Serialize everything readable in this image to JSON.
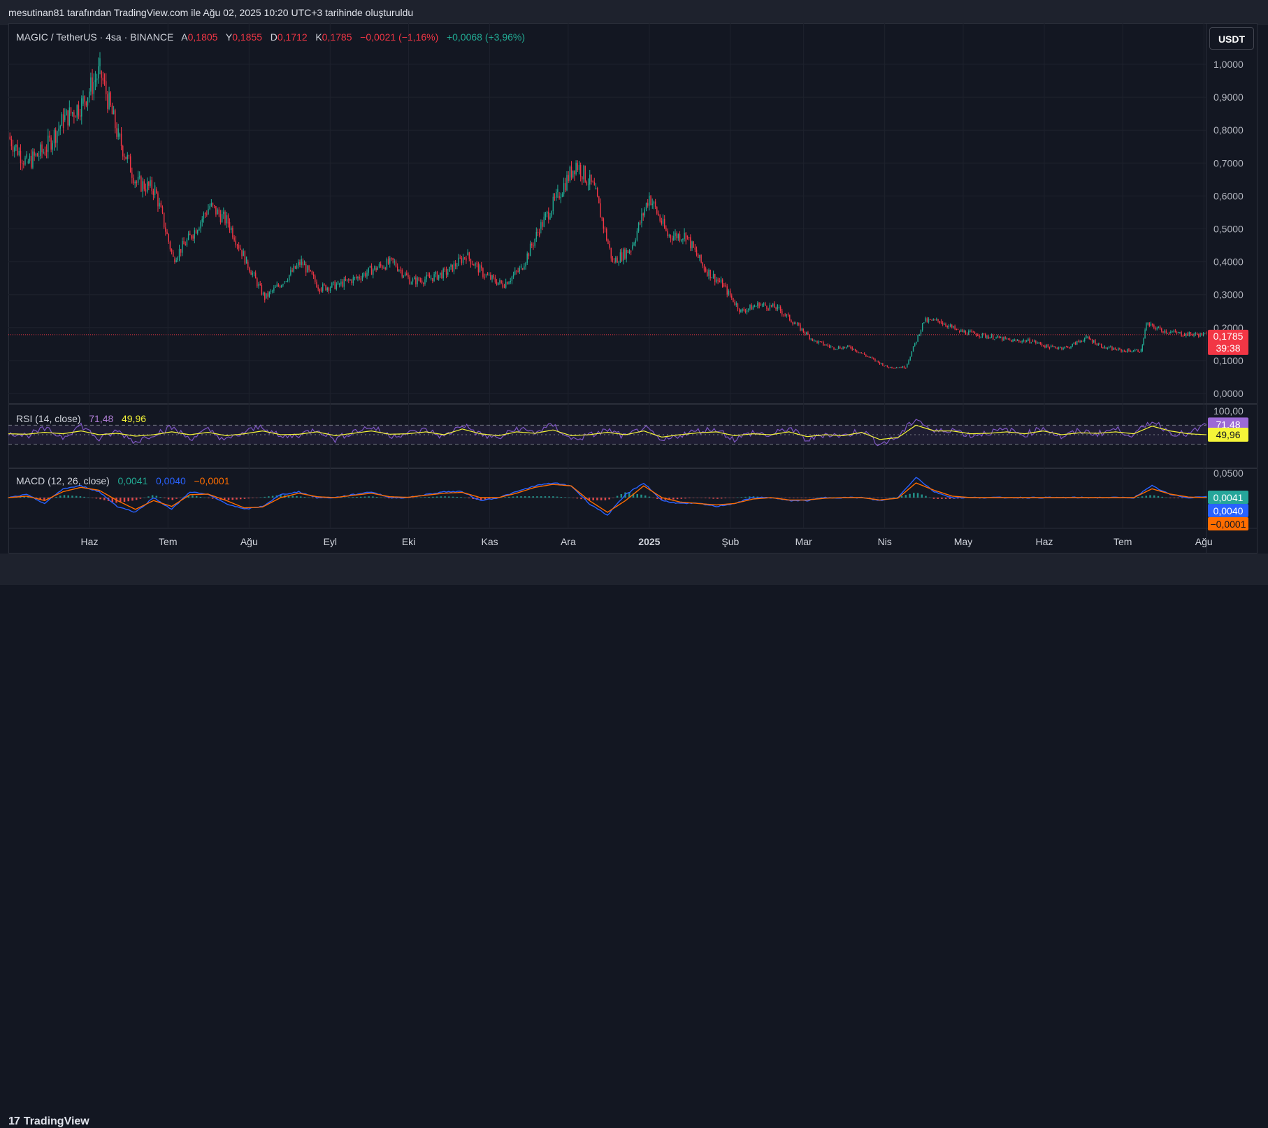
{
  "caption": "mesutinan81 tarafından TradingView.com ile Ağu 02, 2025 10:20 UTC+3 tarihinde oluşturuldu",
  "currency_button": "USDT",
  "footer_brand": "TradingView",
  "main_legend": {
    "symbol": "MAGIC / TetherUS · 4sa · BINANCE",
    "o_label": "A",
    "o_value": "0,1805",
    "h_label": "Y",
    "h_value": "0,1855",
    "l_label": "D",
    "l_value": "0,1712",
    "c_label": "K",
    "c_value": "0,1785",
    "change": "−0,0021 (−1,16%)",
    "change2": "+0,0068 (+3,96%)"
  },
  "rsi_legend": {
    "name": "RSI (14, close)",
    "rsi": "71,48",
    "ma": "49,96"
  },
  "macd_legend": {
    "name": "MACD (12, 26, close)",
    "hist": "0,0041",
    "macd": "0,0040",
    "signal": "−0,0001"
  },
  "price_badge": {
    "price": "0,1785",
    "countdown": "39:38"
  },
  "rsi_badges": {
    "rsi": "71,48",
    "ma": "49,96"
  },
  "macd_badges": {
    "hist": "0,0041",
    "macd": "0,0040",
    "signal": "−0,0001"
  },
  "colors": {
    "up": "#22ab94",
    "down": "#f23645",
    "rsi": "#7e57c2",
    "rsi_ma": "#f5f538",
    "macd": "#2962ff",
    "signal": "#ff6d00",
    "bg": "#131722",
    "grid": "#1e222d"
  },
  "chart_data": [
    {
      "type": "line",
      "title": "MAGIC / TetherUS · 4sa · BINANCE",
      "series": [
        {
          "x": [
            "2024-05-01",
            "2024-05-08",
            "2024-05-15",
            "2024-05-22",
            "2024-05-29",
            "2024-06-05",
            "2024-06-12",
            "2024-06-19",
            "2024-06-26",
            "2024-07-03",
            "2024-07-10",
            "2024-07-17",
            "2024-07-24",
            "2024-07-31",
            "2024-08-07",
            "2024-08-14",
            "2024-08-21",
            "2024-08-28",
            "2024-09-04",
            "2024-09-11",
            "2024-09-18",
            "2024-09-25",
            "2024-10-02",
            "2024-10-09",
            "2024-10-16",
            "2024-10-23",
            "2024-10-30",
            "2024-11-06",
            "2024-11-13",
            "2024-11-20",
            "2024-11-27",
            "2024-12-04",
            "2024-12-11",
            "2024-12-18",
            "2024-12-25",
            "2025-01-01",
            "2025-01-08",
            "2025-01-15",
            "2025-01-22",
            "2025-01-29",
            "2025-02-05",
            "2025-02-12",
            "2025-02-19",
            "2025-02-26",
            "2025-03-05",
            "2025-03-12",
            "2025-03-19",
            "2025-03-26",
            "2025-04-02",
            "2025-04-09",
            "2025-04-16",
            "2025-04-22",
            "2025-04-29",
            "2025-05-06",
            "2025-05-13",
            "2025-05-20",
            "2025-05-27",
            "2025-06-03",
            "2025-06-10",
            "2025-06-17",
            "2025-06-24",
            "2025-07-01",
            "2025-07-08",
            "2025-07-10",
            "2025-07-17",
            "2025-07-24",
            "2025-08-02"
          ],
          "close": [
            0.78,
            0.7,
            0.74,
            0.83,
            0.88,
            0.98,
            0.78,
            0.64,
            0.62,
            0.41,
            0.48,
            0.57,
            0.52,
            0.4,
            0.29,
            0.34,
            0.4,
            0.32,
            0.33,
            0.35,
            0.38,
            0.4,
            0.34,
            0.35,
            0.37,
            0.42,
            0.36,
            0.33,
            0.38,
            0.5,
            0.6,
            0.7,
            0.62,
            0.4,
            0.44,
            0.6,
            0.48,
            0.48,
            0.38,
            0.33,
            0.25,
            0.27,
            0.26,
            0.21,
            0.16,
            0.14,
            0.14,
            0.11,
            0.08,
            0.08,
            0.22,
            0.22,
            0.19,
            0.18,
            0.17,
            0.16,
            0.16,
            0.14,
            0.14,
            0.17,
            0.14,
            0.13,
            0.13,
            0.21,
            0.19,
            0.18,
            0.1785
          ]
        }
      ],
      "ylim": [
        0,
        1.0
      ],
      "yticks": [
        "1,0000",
        "0,9000",
        "0,8000",
        "0,7000",
        "0,6000",
        "0,5000",
        "0,4000",
        "0,3000",
        "0,2000",
        "0,1000",
        "0,0000"
      ],
      "xticks": [
        "Haz",
        "Tem",
        "Ağu",
        "Eyl",
        "Eki",
        "Kas",
        "Ara",
        "2025",
        "Şub",
        "Mar",
        "Nis",
        "May",
        "Haz",
        "Tem",
        "Ağu"
      ],
      "current_price": 0.1785,
      "grid": true
    },
    {
      "type": "line",
      "title": "RSI (14, close)",
      "ylim": [
        0,
        100
      ],
      "yticks": [
        "100,00"
      ],
      "bands": [
        70,
        50,
        30
      ],
      "series": [
        {
          "name": "RSI",
          "values": [
            55,
            48,
            62,
            45,
            70,
            40,
            58,
            35,
            52,
            65,
            42,
            60,
            38,
            55,
            68,
            44,
            50,
            62,
            40,
            57,
            66,
            48,
            53,
            60,
            45,
            72,
            50,
            42,
            63,
            55,
            70,
            40,
            48,
            60,
            45,
            66,
            35,
            50,
            58,
            62,
            40,
            55,
            48,
            65,
            38,
            52,
            47,
            60,
            30,
            45,
            85,
            55,
            62,
            48,
            55,
            60,
            50,
            65,
            45,
            58,
            52,
            62,
            48,
            80,
            55,
            50,
            71.48
          ]
        },
        {
          "name": "MA",
          "values": [
            52,
            51,
            55,
            52,
            58,
            50,
            53,
            47,
            50,
            56,
            50,
            55,
            48,
            52,
            58,
            50,
            51,
            56,
            48,
            53,
            58,
            51,
            52,
            56,
            50,
            62,
            52,
            48,
            56,
            53,
            60,
            48,
            50,
            55,
            50,
            58,
            45,
            50,
            54,
            56,
            48,
            52,
            50,
            56,
            46,
            50,
            48,
            55,
            40,
            44,
            70,
            58,
            58,
            52,
            53,
            56,
            52,
            58,
            50,
            54,
            53,
            56,
            52,
            68,
            58,
            52,
            49.96
          ]
        }
      ]
    },
    {
      "type": "line",
      "title": "MACD (12, 26, close)",
      "yticks": [
        "0,0500"
      ],
      "series": [
        {
          "name": "MACD",
          "values": [
            0,
            0.01,
            -0.02,
            0.03,
            0.04,
            0.02,
            -0.03,
            -0.05,
            0,
            -0.04,
            0.02,
            0.01,
            -0.02,
            -0.04,
            -0.03,
            0.01,
            0.02,
            0,
            0,
            0.01,
            0.02,
            0,
            0,
            0.01,
            0.02,
            0.02,
            -0.01,
            0,
            0.02,
            0.04,
            0.05,
            0.04,
            -0.02,
            -0.06,
            0.01,
            0.05,
            -0.01,
            -0.02,
            -0.02,
            -0.03,
            -0.02,
            0,
            0,
            -0.01,
            -0.01,
            0,
            0,
            0,
            -0.01,
            0,
            0.07,
            0.02,
            0,
            0,
            0,
            0,
            0,
            0,
            0,
            0,
            0,
            0,
            0,
            0.04,
            0.01,
            0,
            0.004
          ]
        },
        {
          "name": "Signal",
          "values": [
            0,
            0.005,
            -0.01,
            0.02,
            0.035,
            0.025,
            -0.01,
            -0.04,
            -0.01,
            -0.03,
            0.01,
            0.012,
            -0.01,
            -0.035,
            -0.032,
            0,
            0.015,
            0.003,
            0,
            0.008,
            0.015,
            0.003,
            0.001,
            0.008,
            0.015,
            0.018,
            0,
            0,
            0.015,
            0.035,
            0.045,
            0.04,
            -0.01,
            -0.05,
            -0.01,
            0.04,
            0,
            -0.015,
            -0.02,
            -0.025,
            -0.02,
            -0.005,
            0,
            -0.008,
            -0.008,
            -0.002,
            0,
            0,
            -0.008,
            -0.002,
            0.05,
            0.025,
            0.005,
            0,
            0,
            0,
            0,
            0,
            0,
            0,
            0,
            0,
            0,
            0.03,
            0.012,
            0.002,
            0
          ]
        }
      ]
    }
  ]
}
